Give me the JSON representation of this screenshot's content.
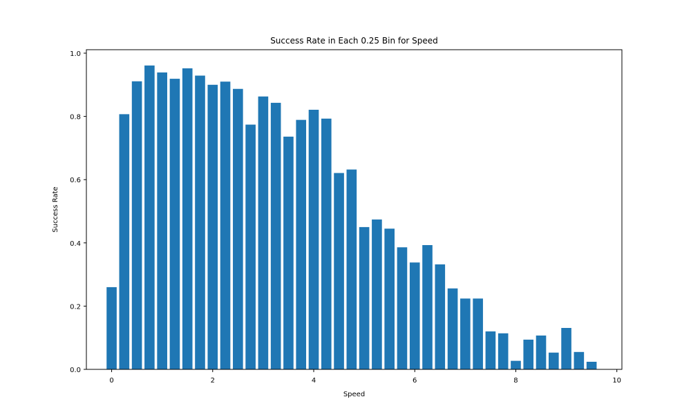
{
  "chart_data": {
    "type": "bar",
    "title": "Success Rate in Each 0.25 Bin for Speed",
    "xlabel": "Speed",
    "ylabel": "Success Rate",
    "xlim": [
      -0.5,
      10.1
    ],
    "ylim": [
      0,
      1.0
    ],
    "xticks": [
      0,
      2,
      4,
      6,
      8,
      10
    ],
    "yticks": [
      0.0,
      0.2,
      0.4,
      0.6,
      0.8,
      1.0
    ],
    "bar_width": 0.2,
    "color": "#1f77b4",
    "grid": false,
    "x": [
      0,
      0.25,
      0.5,
      0.75,
      1.0,
      1.25,
      1.5,
      1.75,
      2.0,
      2.25,
      2.5,
      2.75,
      3.0,
      3.25,
      3.5,
      3.75,
      4.0,
      4.25,
      4.5,
      4.75,
      5.0,
      5.25,
      5.5,
      5.75,
      6.0,
      6.25,
      6.5,
      6.75,
      7.0,
      7.25,
      7.5,
      7.75,
      8.0,
      8.25,
      8.5,
      8.75,
      9.0,
      9.25,
      9.5
    ],
    "values": [
      0.26,
      0.807,
      0.911,
      0.961,
      0.939,
      0.919,
      0.952,
      0.929,
      0.9,
      0.91,
      0.887,
      0.774,
      0.863,
      0.843,
      0.736,
      0.789,
      0.821,
      0.793,
      0.621,
      0.632,
      0.45,
      0.474,
      0.445,
      0.386,
      0.338,
      0.393,
      0.332,
      0.256,
      0.224,
      0.224,
      0.12,
      0.114,
      0.027,
      0.094,
      0.107,
      0.053,
      0.131,
      0.055,
      0.024
    ]
  }
}
